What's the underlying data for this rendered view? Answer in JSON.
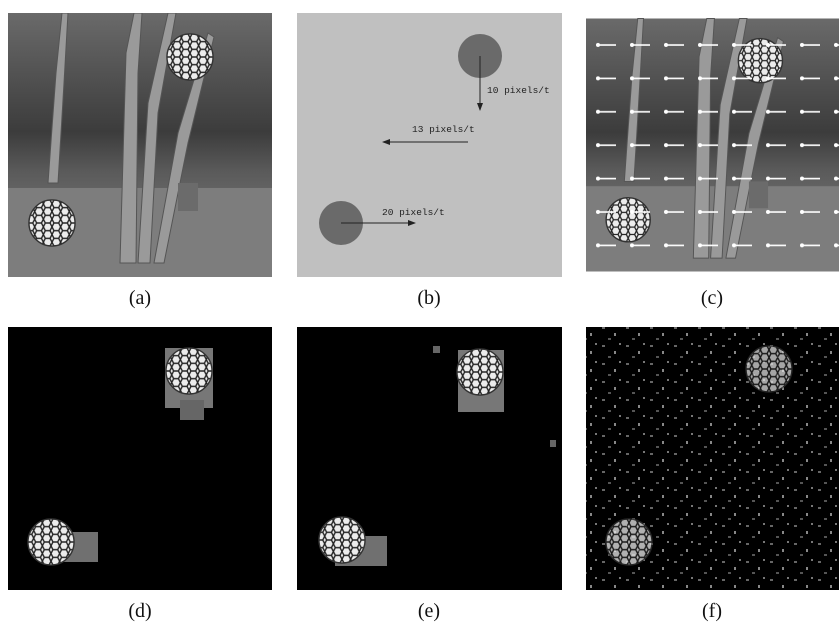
{
  "panels": [
    {
      "caption": "(a)"
    },
    {
      "caption": "(b)"
    },
    {
      "caption": "(c)"
    },
    {
      "caption": "(d)"
    },
    {
      "caption": "(e)"
    },
    {
      "caption": "(f)"
    }
  ],
  "motion_labels": [
    "10 pixels/t",
    "13 pixels/t",
    "20 pixels/t"
  ]
}
